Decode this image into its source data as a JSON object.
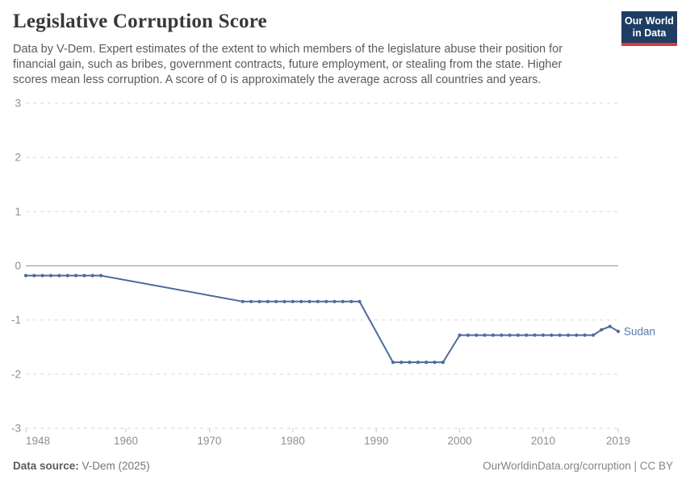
{
  "header": {
    "title": "Legislative Corruption Score",
    "subtitle": "Data by V-Dem. Expert estimates of the extent to which members of the legislature abuse their position for financial gain, such as bribes, government contracts, future employment, or stealing from the state. Higher scores mean less corruption. A score of 0 is approximately the average across all countries and years.",
    "logo": {
      "line1": "Our World",
      "line2": "in Data"
    }
  },
  "footer": {
    "source_label": "Data source:",
    "source_value": " V-Dem (2025)",
    "credit": "OurWorldinData.org/corruption | CC BY"
  },
  "colors": {
    "series": "#4C6A9C",
    "series_label": "#5b76a6",
    "grid": "#dedede",
    "zero_line": "#a3a3a3",
    "axis_text": "#8f8f8f",
    "tick_mark": "#c8c8c8",
    "logo_bg": "#1d3d63",
    "logo_accent": "#d73a3a"
  },
  "chart_data": {
    "type": "line",
    "title": "Legislative Corruption Score",
    "xlabel": "",
    "ylabel": "",
    "xlim": [
      1948,
      2019
    ],
    "ylim": [
      -3,
      3
    ],
    "x_ticks": [
      1948,
      1960,
      1970,
      1980,
      1990,
      2000,
      2010,
      2019
    ],
    "y_ticks": [
      3,
      2,
      1,
      0,
      -1,
      -2,
      -3
    ],
    "grid": "horizontal dashed gridlines, solid line at 0",
    "legend_position": "label at end of line",
    "series": [
      {
        "name": "Sudan",
        "color": "#4C6A9C",
        "points": [
          [
            1948,
            -0.18
          ],
          [
            1949,
            -0.18
          ],
          [
            1950,
            -0.18
          ],
          [
            1951,
            -0.18
          ],
          [
            1952,
            -0.18
          ],
          [
            1953,
            -0.18
          ],
          [
            1954,
            -0.18
          ],
          [
            1955,
            -0.18
          ],
          [
            1956,
            -0.18
          ],
          [
            1957,
            -0.18
          ],
          [
            1974,
            -0.66
          ],
          [
            1975,
            -0.66
          ],
          [
            1976,
            -0.66
          ],
          [
            1977,
            -0.66
          ],
          [
            1978,
            -0.66
          ],
          [
            1979,
            -0.66
          ],
          [
            1980,
            -0.66
          ],
          [
            1981,
            -0.66
          ],
          [
            1982,
            -0.66
          ],
          [
            1983,
            -0.66
          ],
          [
            1984,
            -0.66
          ],
          [
            1985,
            -0.66
          ],
          [
            1986,
            -0.66
          ],
          [
            1987,
            -0.66
          ],
          [
            1988,
            -0.66
          ],
          [
            1992,
            -1.78
          ],
          [
            1993,
            -1.78
          ],
          [
            1994,
            -1.78
          ],
          [
            1995,
            -1.78
          ],
          [
            1996,
            -1.78
          ],
          [
            1997,
            -1.78
          ],
          [
            1998,
            -1.78
          ],
          [
            2000,
            -1.28
          ],
          [
            2001,
            -1.28
          ],
          [
            2002,
            -1.28
          ],
          [
            2003,
            -1.28
          ],
          [
            2004,
            -1.28
          ],
          [
            2005,
            -1.28
          ],
          [
            2006,
            -1.28
          ],
          [
            2007,
            -1.28
          ],
          [
            2008,
            -1.28
          ],
          [
            2009,
            -1.28
          ],
          [
            2010,
            -1.28
          ],
          [
            2011,
            -1.28
          ],
          [
            2012,
            -1.28
          ],
          [
            2013,
            -1.28
          ],
          [
            2014,
            -1.28
          ],
          [
            2015,
            -1.28
          ],
          [
            2016,
            -1.28
          ],
          [
            2017,
            -1.18
          ],
          [
            2018,
            -1.12
          ],
          [
            2019,
            -1.21
          ]
        ]
      }
    ]
  }
}
